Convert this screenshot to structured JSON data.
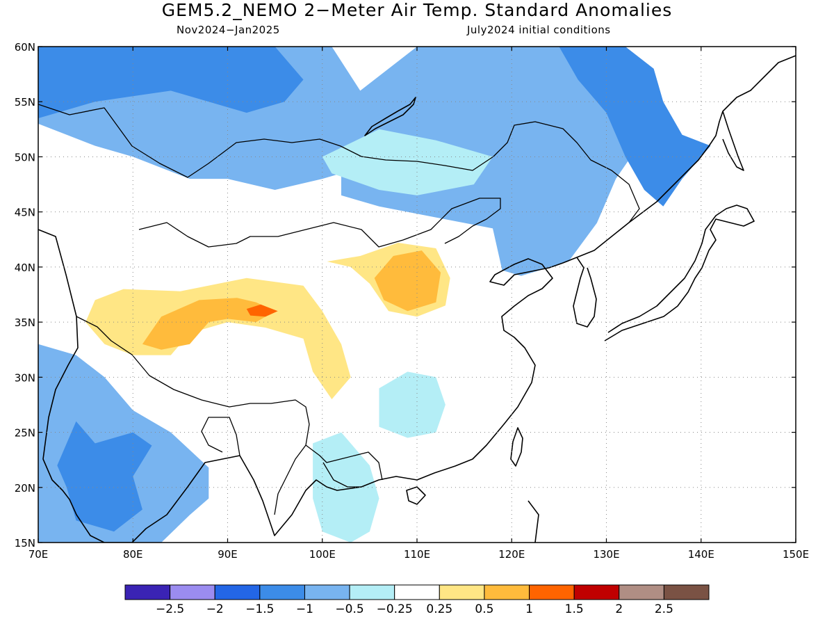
{
  "title": "GEM5.2_NEMO 2−Meter Air Temp. Standard Anomalies",
  "subtitle_left": "Nov2024−Jan2025",
  "subtitle_right": "July2024 initial conditions",
  "chart_data": {
    "type": "heatmap",
    "title": "GEM5.2_NEMO 2−Meter Air Temp. Standard Anomalies",
    "xlim": [
      70,
      150
    ],
    "ylim": [
      15,
      60
    ],
    "x_ticks": [
      {
        "value": 70,
        "label": "70E"
      },
      {
        "value": 80,
        "label": "80E"
      },
      {
        "value": 90,
        "label": "90E"
      },
      {
        "value": 100,
        "label": "100E"
      },
      {
        "value": 110,
        "label": "110E"
      },
      {
        "value": 120,
        "label": "120E"
      },
      {
        "value": 130,
        "label": "130E"
      },
      {
        "value": 140,
        "label": "140E"
      },
      {
        "value": 150,
        "label": "150E"
      }
    ],
    "y_ticks": [
      {
        "value": 15,
        "label": "15N"
      },
      {
        "value": 20,
        "label": "20N"
      },
      {
        "value": 25,
        "label": "25N"
      },
      {
        "value": 30,
        "label": "30N"
      },
      {
        "value": 35,
        "label": "35N"
      },
      {
        "value": 40,
        "label": "40N"
      },
      {
        "value": 45,
        "label": "45N"
      },
      {
        "value": 50,
        "label": "50N"
      },
      {
        "value": 55,
        "label": "55N"
      },
      {
        "value": 60,
        "label": "60N"
      }
    ],
    "grid": true,
    "colorbar": {
      "placement": "bottom",
      "colors": [
        "#3a23b4",
        "#9b8cf0",
        "#2366e6",
        "#3c8ce8",
        "#78b4f0",
        "#b4eef6",
        "#ffffff",
        "#ffe685",
        "#ffbb3c",
        "#ff6400",
        "#c00000",
        "#b08e84",
        "#7a5244"
      ],
      "labels": [
        "−2.5",
        "−2",
        "−1.5",
        "−1",
        "−0.5",
        "−0.25",
        "0.25",
        "0.5",
        "1",
        "1.5",
        "2",
        "2.5"
      ]
    },
    "regions": [
      {
        "level": -1.0,
        "color": "#78b4f0",
        "points": [
          [
            70,
            60
          ],
          [
            101,
            60
          ],
          [
            104,
            56
          ],
          [
            106,
            52
          ],
          [
            104,
            49
          ],
          [
            100,
            48
          ],
          [
            95,
            47
          ],
          [
            90,
            48
          ],
          [
            86,
            48
          ],
          [
            83,
            49
          ],
          [
            80,
            50
          ],
          [
            76,
            51
          ],
          [
            73,
            52
          ],
          [
            70,
            53
          ]
        ]
      },
      {
        "level": -1.0,
        "color": "#78b4f0",
        "points": [
          [
            104,
            56
          ],
          [
            110,
            60
          ],
          [
            127,
            60
          ],
          [
            134,
            57
          ],
          [
            135,
            53
          ],
          [
            131,
            48
          ],
          [
            129,
            44
          ],
          [
            126,
            40.5
          ],
          [
            121,
            39.2
          ],
          [
            119,
            39.7
          ],
          [
            118,
            43.5
          ],
          [
            112,
            44.5
          ],
          [
            106,
            45.5
          ],
          [
            102,
            46.5
          ],
          [
            102,
            49
          ],
          [
            104,
            51.5
          ]
        ]
      },
      {
        "level": -1.0,
        "color": "#78b4f0",
        "points": [
          [
            70,
            33
          ],
          [
            74,
            32
          ],
          [
            77,
            30
          ],
          [
            80,
            27
          ],
          [
            84,
            25
          ],
          [
            88,
            21.8
          ],
          [
            88,
            19
          ],
          [
            86,
            17.5
          ],
          [
            83,
            15
          ],
          [
            70,
            15
          ]
        ]
      },
      {
        "level": -1.5,
        "color": "#3c8ce8",
        "points": [
          [
            70,
            60
          ],
          [
            95,
            60
          ],
          [
            98,
            57
          ],
          [
            96,
            55
          ],
          [
            92,
            54
          ],
          [
            88,
            55
          ],
          [
            84,
            56
          ],
          [
            80,
            55.5
          ],
          [
            76,
            55
          ],
          [
            72,
            54
          ],
          [
            70,
            53.5
          ]
        ]
      },
      {
        "level": -1.5,
        "color": "#3c8ce8",
        "points": [
          [
            125,
            60
          ],
          [
            132,
            60
          ],
          [
            135,
            58
          ],
          [
            136,
            55
          ],
          [
            138,
            52
          ],
          [
            141,
            51
          ],
          [
            138,
            48
          ],
          [
            136,
            45.5
          ],
          [
            134,
            47
          ],
          [
            132,
            50
          ],
          [
            130,
            54
          ],
          [
            127,
            57
          ]
        ]
      },
      {
        "level": -1.5,
        "color": "#3c8ce8",
        "points": [
          [
            74,
            26
          ],
          [
            76,
            24
          ],
          [
            80,
            25
          ],
          [
            82,
            23.8
          ],
          [
            80,
            21
          ],
          [
            81,
            18
          ],
          [
            78,
            16
          ],
          [
            74,
            17
          ],
          [
            73,
            20
          ],
          [
            72,
            22
          ]
        ]
      },
      {
        "level": -0.5,
        "color": "#b4eef6",
        "points": [
          [
            100,
            50
          ],
          [
            106,
            52.5
          ],
          [
            112,
            51.5
          ],
          [
            118,
            50
          ],
          [
            116,
            47.5
          ],
          [
            110,
            46.5
          ],
          [
            106,
            47
          ],
          [
            101,
            48.5
          ]
        ]
      },
      {
        "level": -0.5,
        "color": "#b4eef6",
        "points": [
          [
            106,
            29
          ],
          [
            109,
            30.5
          ],
          [
            112,
            30
          ],
          [
            113,
            27.5
          ],
          [
            112,
            25
          ],
          [
            109,
            24.5
          ],
          [
            106,
            25.5
          ]
        ]
      },
      {
        "level": -0.5,
        "color": "#b4eef6",
        "points": [
          [
            99,
            24
          ],
          [
            102,
            25
          ],
          [
            105,
            22
          ],
          [
            106,
            19
          ],
          [
            105,
            16
          ],
          [
            103,
            15
          ],
          [
            100,
            16
          ],
          [
            99,
            19
          ]
        ]
      },
      {
        "level": 0.5,
        "color": "#ffe685",
        "points": [
          [
            79,
            38
          ],
          [
            85,
            37.8
          ],
          [
            92,
            39
          ],
          [
            98,
            38.3
          ],
          [
            100,
            36
          ],
          [
            102,
            33
          ],
          [
            103,
            30
          ],
          [
            101,
            28
          ],
          [
            99,
            30.5
          ],
          [
            98,
            33.5
          ],
          [
            94,
            34.5
          ],
          [
            90,
            35
          ],
          [
            86,
            34
          ],
          [
            84,
            32
          ],
          [
            80,
            32
          ],
          [
            77,
            33
          ],
          [
            75,
            35
          ],
          [
            76,
            37
          ]
        ]
      },
      {
        "level": 0.5,
        "color": "#ffe685",
        "points": [
          [
            100.5,
            40.5
          ],
          [
            104,
            41
          ],
          [
            108,
            42.2
          ],
          [
            112,
            41.7
          ],
          [
            113.5,
            39
          ],
          [
            113,
            36.5
          ],
          [
            110,
            35.5
          ],
          [
            107,
            36
          ],
          [
            105,
            38.5
          ],
          [
            103,
            40
          ]
        ]
      },
      {
        "level": 1.0,
        "color": "#ffbb3c",
        "points": [
          [
            87,
            37
          ],
          [
            91,
            37.2
          ],
          [
            93,
            36.8
          ],
          [
            95,
            36
          ],
          [
            93,
            35
          ],
          [
            90,
            35.3
          ],
          [
            88,
            35
          ],
          [
            86,
            33
          ],
          [
            83,
            32.5
          ],
          [
            81,
            33
          ],
          [
            83,
            35.5
          ]
        ]
      },
      {
        "level": 1.0,
        "color": "#ffbb3c",
        "points": [
          [
            105.5,
            39
          ],
          [
            107.5,
            41
          ],
          [
            110.5,
            41.5
          ],
          [
            112.5,
            39.5
          ],
          [
            112,
            36.8
          ],
          [
            109,
            36
          ],
          [
            106.5,
            37
          ]
        ]
      },
      {
        "level": 1.5,
        "color": "#ff6400",
        "points": [
          [
            92,
            36.2
          ],
          [
            93.5,
            36.6
          ],
          [
            95.3,
            36
          ],
          [
            94,
            35.5
          ],
          [
            92.4,
            35.6
          ]
        ]
      }
    ]
  }
}
